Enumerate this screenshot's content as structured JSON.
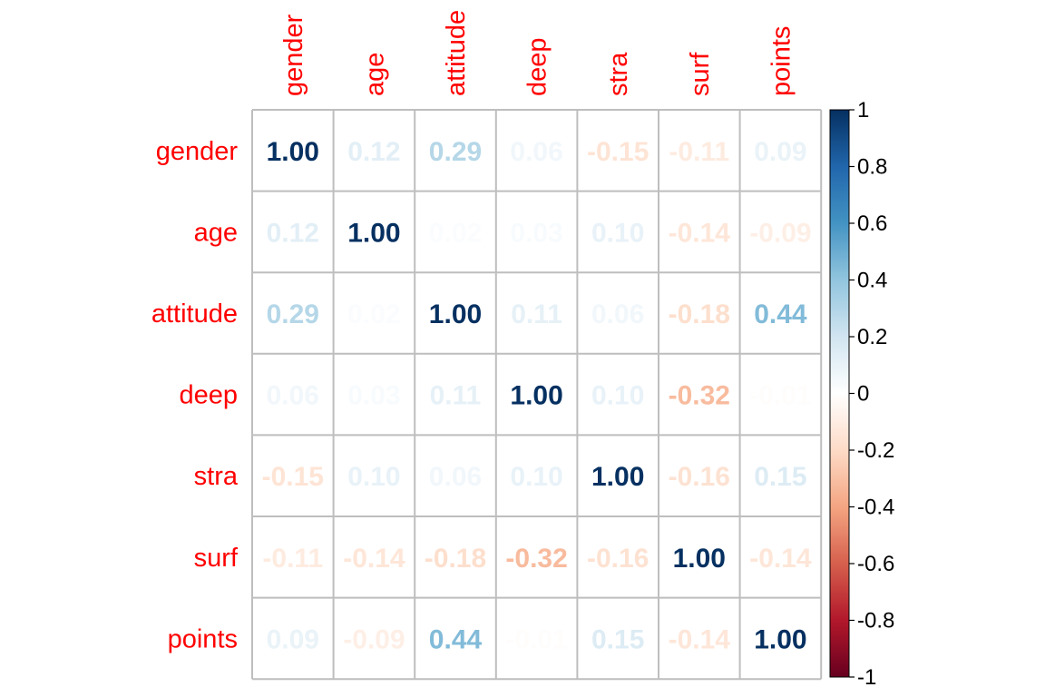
{
  "chart_data": {
    "type": "heatmap",
    "title": "",
    "variables": [
      "gender",
      "age",
      "attitude",
      "deep",
      "stra",
      "surf",
      "points"
    ],
    "label_color": "#ff0000",
    "matrix": [
      [
        1.0,
        0.12,
        0.29,
        0.06,
        -0.15,
        -0.11,
        0.09
      ],
      [
        0.12,
        1.0,
        0.02,
        0.03,
        0.1,
        -0.14,
        -0.09
      ],
      [
        0.29,
        0.02,
        1.0,
        0.11,
        0.06,
        -0.18,
        0.44
      ],
      [
        0.06,
        0.03,
        0.11,
        1.0,
        0.1,
        -0.32,
        -0.01
      ],
      [
        -0.15,
        0.1,
        0.06,
        0.1,
        1.0,
        -0.16,
        0.15
      ],
      [
        -0.11,
        -0.14,
        -0.18,
        -0.32,
        -0.16,
        1.0,
        -0.14
      ],
      [
        0.09,
        -0.09,
        0.44,
        -0.01,
        0.15,
        -0.14,
        1.0
      ]
    ],
    "colorbar": {
      "range": [
        -1,
        1
      ],
      "ticks": [
        "1",
        "0.8",
        "0.6",
        "0.4",
        "0.2",
        "0",
        "-0.2",
        "-0.4",
        "-0.6",
        "-0.8",
        "-1"
      ],
      "colors": [
        "#67001f",
        "#b2182b",
        "#d6604d",
        "#f4a582",
        "#fddbc7",
        "#ffffff",
        "#d1e5f0",
        "#92c5de",
        "#4393c3",
        "#2166ac",
        "#053061"
      ]
    },
    "legend_position": "right",
    "grid": true
  }
}
